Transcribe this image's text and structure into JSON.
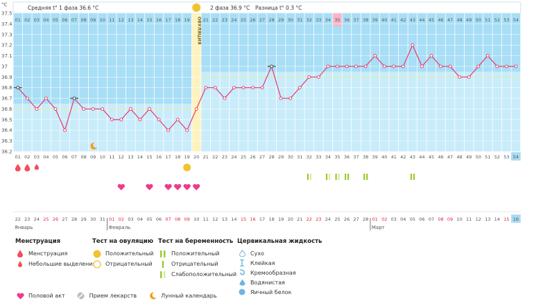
{
  "header": {
    "unit": "°C",
    "phase1": "Средняя t° 1 фаза 36.6 °C",
    "phase2": "2 фаза 36.9 °C",
    "diff": "Разница t° 0.3 °C",
    "ovulation": "ОВУЛЯЦИЯ"
  },
  "chart_data": {
    "type": "line",
    "ylim": [
      36.2,
      37.5
    ],
    "y_ticks": [
      "37.5",
      "37.4",
      "37.3",
      "37.2",
      "37.1",
      "37",
      "36.9",
      "36.8",
      "36.7",
      "36.6",
      "36.5",
      "36.4",
      "36.3",
      "36.2"
    ],
    "cycle_days": [
      "01",
      "02",
      "03",
      "04",
      "05",
      "06",
      "07",
      "08",
      "09",
      "10",
      "11",
      "12",
      "13",
      "14",
      "15",
      "16",
      "17",
      "18",
      "19",
      "20",
      "21",
      "22",
      "23",
      "24",
      "25",
      "26",
      "27",
      "28",
      "29",
      "30",
      "31",
      "32",
      "33",
      "34",
      "35",
      "36",
      "37",
      "38",
      "39",
      "40",
      "41",
      "42",
      "43",
      "44",
      "45",
      "46",
      "47",
      "48",
      "49",
      "50",
      "51",
      "52",
      "53",
      "54"
    ],
    "temperatures": [
      36.8,
      36.7,
      36.6,
      36.7,
      36.6,
      36.4,
      36.7,
      36.6,
      36.6,
      36.6,
      36.5,
      36.5,
      36.6,
      36.5,
      36.6,
      36.5,
      36.4,
      36.5,
      36.4,
      36.6,
      36.8,
      36.8,
      36.7,
      36.8,
      36.8,
      36.8,
      36.8,
      37.0,
      36.7,
      36.7,
      36.8,
      36.9,
      36.9,
      37.0,
      37.0,
      37.0,
      37.0,
      37.0,
      37.1,
      37.0,
      37.0,
      37.0,
      37.2,
      37.0,
      37.1,
      37.0,
      37.0,
      36.9,
      36.9,
      37.0,
      37.1,
      37.0,
      37.0,
      37.0
    ],
    "phase1_avg": 36.6,
    "phase2_avg": 36.9,
    "ovulation_day": 20,
    "highlight_day": 35,
    "dates": [
      "22",
      "23",
      "24",
      "25",
      "26",
      "27",
      "28",
      "29",
      "30",
      "31",
      "01",
      "02",
      "03",
      "04",
      "05",
      "06",
      "07",
      "08",
      "09",
      "10",
      "11",
      "12",
      "13",
      "14",
      "15",
      "16",
      "17",
      "18",
      "19",
      "20",
      "21",
      "22",
      "23",
      "24",
      "25",
      "26",
      "27",
      "28",
      "01",
      "02",
      "03",
      "04",
      "05",
      "06",
      "07",
      "08",
      "09",
      "10",
      "11",
      "12",
      "13",
      "14",
      "15",
      "16"
    ],
    "red_dates_idx": [
      3,
      4,
      10,
      11,
      16,
      17,
      18,
      24,
      25,
      31,
      32,
      38,
      39,
      45,
      46,
      52
    ],
    "months": [
      {
        "label": "Январь",
        "start": 0
      },
      {
        "label": "Февраль",
        "start": 10
      },
      {
        "label": "Март",
        "start": 38
      }
    ]
  },
  "legend": {
    "menstruation": {
      "title": "Менструация",
      "items": [
        "Менструация",
        "Небольшие выделения"
      ]
    },
    "ovulation_test": {
      "title": "Тест на овуляцию",
      "items": [
        "Положительный",
        "Отрицательный"
      ]
    },
    "pregnancy_test": {
      "title": "Тест на беременность",
      "items": [
        "Положительный",
        "Отрицательный",
        "Слабоположительный"
      ]
    },
    "cervical_fluid": {
      "title": "Цервикальная жидкость",
      "items": [
        "Сухо",
        "Клейкая",
        "Кремообразная",
        "Водянистая",
        "Яичный белок"
      ]
    },
    "bottom": [
      "Половой акт",
      "Прием лекарств",
      "Лунный календарь"
    ]
  },
  "colors": {
    "sky": "#c9ecfb",
    "band": "#a8def6",
    "line": "#e8386b",
    "phase1": "#f5e8a3",
    "phase2": "#dceea0",
    "ov_band": "#fdf3c1",
    "pink": "#f7b6c8",
    "heart": "#ef3a8c",
    "drop": "#f24e5c",
    "sun": "#f2c12e",
    "moon": "#f39c12",
    "green": "#9bc92b"
  }
}
